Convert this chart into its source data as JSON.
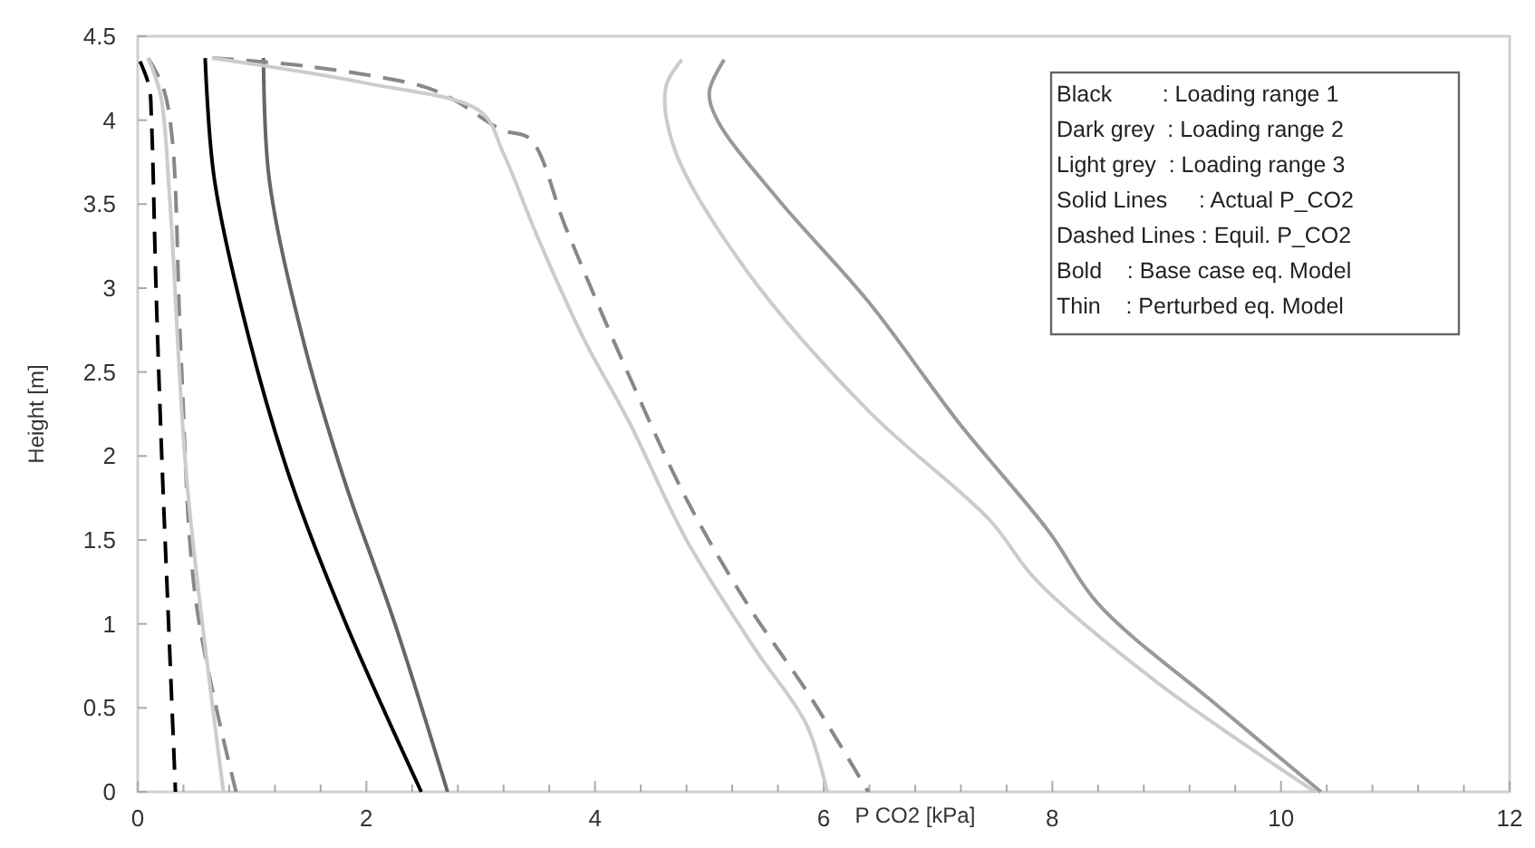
{
  "chart_data": {
    "type": "line",
    "xlabel": "P CO2 [kPa]",
    "ylabel": "Height [m]",
    "xlim": [
      0,
      12
    ],
    "ylim": [
      0,
      4.5
    ],
    "xticks": [
      0,
      {
        "value": 0.4,
        "label": null
      },
      {
        "value": 0.8,
        "label": null
      },
      {
        "value": 1.2,
        "label": null
      },
      {
        "value": 1.6,
        "label": null
      },
      2,
      {
        "value": 2.4,
        "label": null
      },
      {
        "value": 2.8,
        "label": null
      },
      {
        "value": 3.2,
        "label": null
      },
      {
        "value": 3.6,
        "label": null
      },
      4,
      {
        "value": 4.4,
        "label": null
      },
      {
        "value": 4.8,
        "label": null
      },
      {
        "value": 5.2,
        "label": null
      },
      {
        "value": 5.6,
        "label": null
      },
      6,
      {
        "value": 6.4,
        "label": null
      },
      {
        "value": 6.8,
        "label": null
      },
      {
        "value": 7.2,
        "label": null
      },
      {
        "value": 7.6,
        "label": null
      },
      8,
      {
        "value": 8.4,
        "label": null
      },
      {
        "value": 8.8,
        "label": null
      },
      {
        "value": 9.2,
        "label": null
      },
      {
        "value": 9.6,
        "label": null
      },
      10,
      {
        "value": 10.4,
        "label": null
      },
      {
        "value": 10.8,
        "label": null
      },
      {
        "value": 11.2,
        "label": null
      },
      {
        "value": 11.6,
        "label": null
      },
      12
    ],
    "yticks": [
      0,
      0.5,
      1,
      1.5,
      2,
      2.5,
      3,
      3.5,
      4,
      4.5
    ],
    "grid": false,
    "marker": "none",
    "annotations": [
      "Black        : Loading range 1",
      "Dark grey  : Loading range 2",
      "Light grey  : Loading range 3",
      "Solid Lines     : Actual P_CO2",
      "Dashed Lines : Equil. P_CO2",
      "Bold    : Base case eq. Model",
      "Thin    : Perturbed eq. Model"
    ],
    "series": [
      {
        "color": "#000000",
        "line_style": "dashed",
        "x": [
          0.02,
          0.1,
          0.12,
          0.16,
          0.21,
          0.27,
          0.33
        ],
        "values": [
          4.35,
          4.2,
          4.0,
          3.0,
          2.0,
          1.0,
          0
        ]
      },
      {
        "color": "#000000",
        "line_style": "solid",
        "x": [
          0.59,
          0.67,
          0.97,
          1.34,
          1.81,
          2.48
        ],
        "values": [
          4.37,
          3.65,
          2.71,
          1.85,
          1.02,
          0
        ]
      },
      {
        "color": "#666666",
        "line_style": "solid",
        "x": [
          1.1,
          1.15,
          1.44,
          1.81,
          2.24,
          2.71
        ],
        "values": [
          4.37,
          3.65,
          2.71,
          1.85,
          1.02,
          0
        ]
      },
      {
        "color": "#888888",
        "line_style": "dashed",
        "x": [
          0.09,
          0.22,
          0.3,
          0.38,
          0.51,
          0.86
        ],
        "values": [
          4.37,
          4.2,
          3.9,
          2.57,
          1.13,
          0
        ]
      },
      {
        "color": "#cccccc",
        "line_style": "solid",
        "x": [
          0.09,
          0.2,
          0.28,
          0.43,
          0.75
        ],
        "values": [
          4.37,
          4.15,
          3.53,
          1.85,
          0
        ]
      },
      {
        "color": "#888888",
        "line_style": "dashed",
        "x": [
          0.65,
          1.5,
          2.5,
          2.77,
          3.19,
          3.43,
          3.75,
          4.29,
          4.81,
          5.33,
          5.87,
          6.39
        ],
        "values": [
          4.37,
          4.32,
          4.2,
          4.12,
          3.94,
          3.89,
          3.35,
          2.49,
          1.73,
          1.12,
          0.58,
          0
        ]
      },
      {
        "color": "#cccccc",
        "line_style": "solid",
        "x": [
          0.65,
          2.0,
          3.0,
          3.2,
          3.5,
          3.9,
          4.3,
          4.8,
          5.4,
          5.85,
          6.03
        ],
        "values": [
          4.37,
          4.22,
          4.05,
          3.8,
          3.3,
          2.7,
          2.2,
          1.5,
          0.85,
          0.4,
          0
        ]
      },
      {
        "color": "#999999",
        "line_style": "solid",
        "x": [
          5.13,
          5.0,
          5.07,
          5.6,
          6.39,
          7.18,
          7.97,
          8.4,
          9.45,
          10.35
        ],
        "values": [
          4.36,
          4.17,
          4.0,
          3.53,
          2.92,
          2.2,
          1.55,
          1.12,
          0.51,
          0
        ]
      },
      {
        "color": "#cccccc",
        "line_style": "solid",
        "x": [
          4.76,
          4.62,
          4.7,
          5.33,
          6.39,
          7.45,
          7.86,
          8.92,
          10.3
        ],
        "values": [
          4.36,
          4.2,
          3.82,
          3.1,
          2.27,
          1.62,
          1.26,
          0.65,
          0
        ]
      }
    ]
  }
}
